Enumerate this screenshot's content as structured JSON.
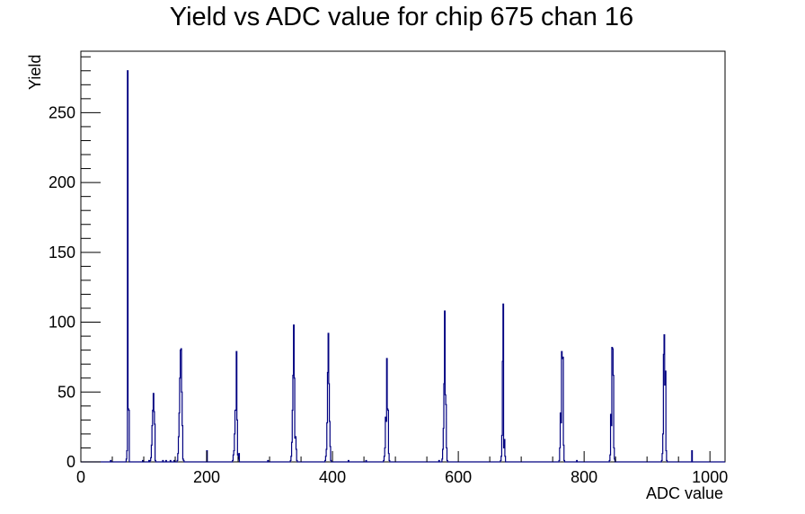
{
  "chart_data": {
    "type": "bar",
    "title": "Yield vs ADC value for chip 675 chan 16",
    "xlabel": "ADC value",
    "ylabel": "Yield",
    "xlim": [
      0,
      1024
    ],
    "ylim": [
      0,
      294
    ],
    "x_ticks": [
      0,
      200,
      400,
      600,
      800,
      1000
    ],
    "y_ticks": [
      0,
      50,
      100,
      150,
      200,
      250
    ],
    "series": [
      {
        "color": "#000080",
        "bins": [
          [
            47,
            1
          ],
          [
            72,
            2
          ],
          [
            73,
            8
          ],
          [
            74,
            280
          ],
          [
            75,
            38
          ],
          [
            76,
            37
          ],
          [
            98,
            1
          ],
          [
            108,
            1
          ],
          [
            110,
            1
          ],
          [
            111,
            3
          ],
          [
            112,
            12
          ],
          [
            113,
            26
          ],
          [
            114,
            37
          ],
          [
            115,
            49
          ],
          [
            116,
            36
          ],
          [
            117,
            27
          ],
          [
            118,
            1
          ],
          [
            130,
            1
          ],
          [
            135,
            1
          ],
          [
            142,
            1
          ],
          [
            148,
            1
          ],
          [
            153,
            1
          ],
          [
            154,
            6
          ],
          [
            155,
            18
          ],
          [
            156,
            35
          ],
          [
            157,
            60
          ],
          [
            158,
            80
          ],
          [
            159,
            81
          ],
          [
            160,
            50
          ],
          [
            161,
            26
          ],
          [
            162,
            2
          ],
          [
            163,
            1
          ],
          [
            200,
            8
          ],
          [
            241,
            1
          ],
          [
            242,
            5
          ],
          [
            243,
            8
          ],
          [
            244,
            20
          ],
          [
            245,
            37
          ],
          [
            246,
            37
          ],
          [
            247,
            79
          ],
          [
            248,
            30
          ],
          [
            249,
            5
          ],
          [
            250,
            2
          ],
          [
            251,
            6
          ],
          [
            297,
            1
          ],
          [
            333,
            1
          ],
          [
            334,
            4
          ],
          [
            335,
            14
          ],
          [
            336,
            37
          ],
          [
            337,
            62
          ],
          [
            338,
            98
          ],
          [
            339,
            60
          ],
          [
            340,
            17
          ],
          [
            341,
            18
          ],
          [
            342,
            9
          ],
          [
            343,
            1
          ],
          [
            388,
            1
          ],
          [
            389,
            4
          ],
          [
            390,
            9
          ],
          [
            391,
            28
          ],
          [
            392,
            64
          ],
          [
            393,
            92
          ],
          [
            394,
            56
          ],
          [
            395,
            29
          ],
          [
            396,
            11
          ],
          [
            397,
            1
          ],
          [
            425,
            1
          ],
          [
            453,
            1
          ],
          [
            481,
            1
          ],
          [
            482,
            4
          ],
          [
            483,
            10
          ],
          [
            484,
            32
          ],
          [
            485,
            29
          ],
          [
            486,
            74
          ],
          [
            487,
            38
          ],
          [
            488,
            37
          ],
          [
            489,
            6
          ],
          [
            490,
            1
          ],
          [
            569,
            1
          ],
          [
            574,
            2
          ],
          [
            575,
            9
          ],
          [
            576,
            24
          ],
          [
            577,
            56
          ],
          [
            578,
            108
          ],
          [
            579,
            48
          ],
          [
            580,
            41
          ],
          [
            581,
            10
          ],
          [
            582,
            1
          ],
          [
            667,
            1
          ],
          [
            668,
            4
          ],
          [
            669,
            19
          ],
          [
            670,
            72
          ],
          [
            671,
            113
          ],
          [
            672,
            10
          ],
          [
            673,
            16
          ],
          [
            674,
            4
          ],
          [
            760,
            1
          ],
          [
            761,
            10
          ],
          [
            762,
            35
          ],
          [
            763,
            28
          ],
          [
            764,
            79
          ],
          [
            765,
            74
          ],
          [
            766,
            75
          ],
          [
            767,
            12
          ],
          [
            768,
            1
          ],
          [
            788,
            1
          ],
          [
            840,
            1
          ],
          [
            841,
            5
          ],
          [
            842,
            34
          ],
          [
            843,
            26
          ],
          [
            844,
            82
          ],
          [
            845,
            81
          ],
          [
            846,
            62
          ],
          [
            847,
            10
          ],
          [
            848,
            2
          ],
          [
            923,
            1
          ],
          [
            924,
            6
          ],
          [
            925,
            20
          ],
          [
            926,
            77
          ],
          [
            927,
            91
          ],
          [
            928,
            55
          ],
          [
            929,
            65
          ],
          [
            930,
            8
          ],
          [
            931,
            1
          ],
          [
            971,
            8
          ]
        ]
      }
    ]
  }
}
